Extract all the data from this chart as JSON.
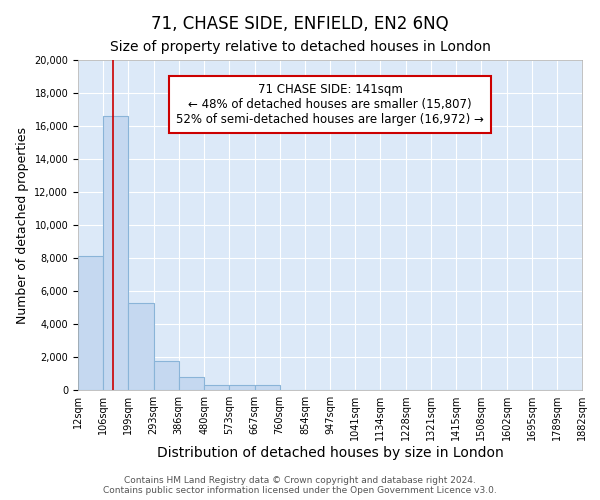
{
  "title1": "71, CHASE SIDE, ENFIELD, EN2 6NQ",
  "title2": "Size of property relative to detached houses in London",
  "xlabel": "Distribution of detached houses by size in London",
  "ylabel": "Number of detached properties",
  "bins": [
    12,
    106,
    199,
    293,
    386,
    480,
    573,
    667,
    760,
    854,
    947,
    1041,
    1134,
    1228,
    1321,
    1415,
    1508,
    1602,
    1695,
    1789,
    1882
  ],
  "bin_labels": [
    "12sqm",
    "106sqm",
    "199sqm",
    "293sqm",
    "386sqm",
    "480sqm",
    "573sqm",
    "667sqm",
    "760sqm",
    "854sqm",
    "947sqm",
    "1041sqm",
    "1134sqm",
    "1228sqm",
    "1321sqm",
    "1415sqm",
    "1508sqm",
    "1602sqm",
    "1695sqm",
    "1789sqm",
    "1882sqm"
  ],
  "values": [
    8100,
    16600,
    5300,
    1750,
    800,
    300,
    300,
    300,
    0,
    0,
    0,
    0,
    0,
    0,
    0,
    0,
    0,
    0,
    0,
    0
  ],
  "bar_color": "#c5d8f0",
  "bar_edge_color": "#8ab4d8",
  "red_line_x": 141,
  "red_line_color": "#cc0000",
  "annotation_line1": "71 CHASE SIDE: 141sqm",
  "annotation_line2": "← 48% of detached houses are smaller (15,807)",
  "annotation_line3": "52% of semi-detached houses are larger (16,972) →",
  "annotation_box_facecolor": "#ffffff",
  "annotation_box_edgecolor": "#cc0000",
  "footer1": "Contains HM Land Registry data © Crown copyright and database right 2024.",
  "footer2": "Contains public sector information licensed under the Open Government Licence v3.0.",
  "ylim": [
    0,
    20000
  ],
  "yticks": [
    0,
    2000,
    4000,
    6000,
    8000,
    10000,
    12000,
    14000,
    16000,
    18000,
    20000
  ],
  "bg_color": "#dce9f8",
  "grid_color": "#ffffff",
  "title1_fontsize": 12,
  "title2_fontsize": 10,
  "ylabel_fontsize": 9,
  "xlabel_fontsize": 10,
  "tick_fontsize": 7,
  "footer_fontsize": 6.5
}
